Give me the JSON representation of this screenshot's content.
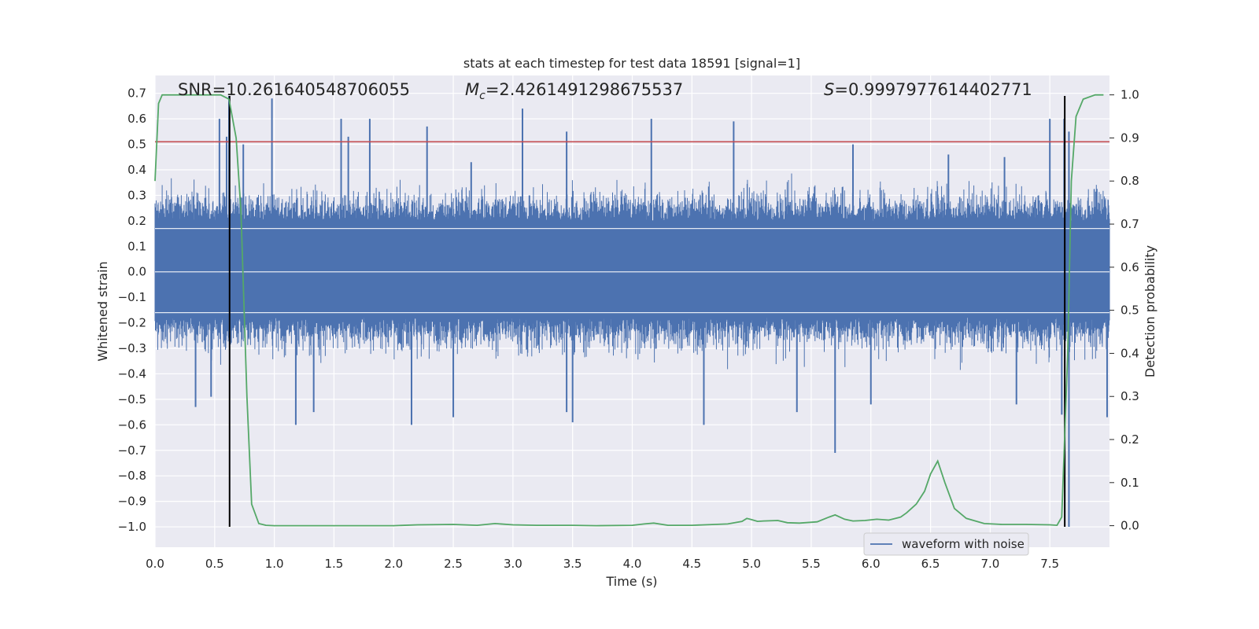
{
  "chart_data": {
    "type": "line",
    "title": "stats at each timestep for test data 18591 [signal=1]",
    "xlabel": "Time (s)",
    "ylabel_left": "Whitened strain",
    "ylabel_right": "Detection probability",
    "xlim": [
      0.0,
      8.0
    ],
    "ylim_left": [
      -1.08,
      0.77
    ],
    "ylim_right": [
      -0.05,
      1.045
    ],
    "x_ticks": [
      "0.0",
      "0.5",
      "1.0",
      "1.5",
      "2.0",
      "2.5",
      "3.0",
      "3.5",
      "4.0",
      "4.5",
      "5.0",
      "5.5",
      "6.0",
      "6.5",
      "7.0",
      "7.5"
    ],
    "y_ticks_left": [
      "0.7",
      "0.6",
      "0.5",
      "0.4",
      "0.3",
      "0.2",
      "0.1",
      "0.0",
      "−0.1",
      "−0.2",
      "−0.3",
      "−0.4",
      "−0.5",
      "−0.6",
      "−0.7",
      "−0.8",
      "−0.9",
      "−1.0"
    ],
    "y_ticks_right": [
      "1.0",
      "0.9",
      "0.8",
      "0.7",
      "0.6",
      "0.5",
      "0.4",
      "0.3",
      "0.2",
      "0.1",
      "0.0"
    ],
    "grid": true,
    "legend_position": "lower-right",
    "annotations": {
      "snr": "SNR=10.261640548706055",
      "mc": "=2.4261491298675537",
      "s": "=0.9997977614402771"
    },
    "threshold": {
      "y": 0.51,
      "color": "#c44e52"
    },
    "detection_lines_x": [
      0.625,
      7.625
    ],
    "series": [
      {
        "name": "waveform with noise",
        "axis": "left",
        "color": "#4c72b0",
        "noise_envelope": {
          "typical_max": [
            0.2,
            0.45
          ],
          "typical_min": [
            -0.18,
            -0.45
          ],
          "spikes_up": [
            {
              "x": 0.54,
              "y": 0.6
            },
            {
              "x": 0.6,
              "y": 0.53
            },
            {
              "x": 0.62,
              "y": 0.69
            },
            {
              "x": 0.74,
              "y": 0.5
            },
            {
              "x": 0.98,
              "y": 0.68
            },
            {
              "x": 1.56,
              "y": 0.6
            },
            {
              "x": 1.62,
              "y": 0.53
            },
            {
              "x": 1.8,
              "y": 0.6
            },
            {
              "x": 2.28,
              "y": 0.57
            },
            {
              "x": 2.65,
              "y": 0.43
            },
            {
              "x": 3.08,
              "y": 0.64
            },
            {
              "x": 3.45,
              "y": 0.55
            },
            {
              "x": 4.16,
              "y": 0.6
            },
            {
              "x": 4.85,
              "y": 0.59
            },
            {
              "x": 5.85,
              "y": 0.5
            },
            {
              "x": 6.65,
              "y": 0.46
            },
            {
              "x": 7.12,
              "y": 0.45
            },
            {
              "x": 7.5,
              "y": 0.6
            },
            {
              "x": 7.62,
              "y": 0.6
            },
            {
              "x": 7.66,
              "y": 0.55
            }
          ],
          "spikes_down": [
            {
              "x": 0.34,
              "y": -0.53
            },
            {
              "x": 0.47,
              "y": -0.49
            },
            {
              "x": 1.18,
              "y": -0.6
            },
            {
              "x": 1.33,
              "y": -0.55
            },
            {
              "x": 2.15,
              "y": -0.6
            },
            {
              "x": 2.5,
              "y": -0.57
            },
            {
              "x": 3.45,
              "y": -0.55
            },
            {
              "x": 3.5,
              "y": -0.59
            },
            {
              "x": 4.6,
              "y": -0.6
            },
            {
              "x": 5.38,
              "y": -0.55
            },
            {
              "x": 5.7,
              "y": -0.71
            },
            {
              "x": 6.0,
              "y": -0.52
            },
            {
              "x": 7.22,
              "y": -0.52
            },
            {
              "x": 7.6,
              "y": -0.56
            },
            {
              "x": 7.66,
              "y": -1.0
            },
            {
              "x": 7.98,
              "y": -0.57
            }
          ]
        }
      },
      {
        "name": "",
        "axis": "right",
        "color": "#55a868",
        "x": [
          0.0,
          0.03,
          0.06,
          0.11,
          0.2,
          0.3,
          0.4,
          0.5,
          0.55,
          0.62,
          0.68,
          0.72,
          0.77,
          0.81,
          0.87,
          0.93,
          1.0,
          1.2,
          1.5,
          1.8,
          2.0,
          2.2,
          2.5,
          2.7,
          2.85,
          3.0,
          3.2,
          3.5,
          3.7,
          4.0,
          4.1,
          4.18,
          4.3,
          4.5,
          4.8,
          4.92,
          4.96,
          5.0,
          5.05,
          5.1,
          5.22,
          5.3,
          5.4,
          5.55,
          5.65,
          5.7,
          5.78,
          5.85,
          5.95,
          6.05,
          6.15,
          6.25,
          6.3,
          6.38,
          6.45,
          6.5,
          6.56,
          6.62,
          6.7,
          6.8,
          6.95,
          7.1,
          7.3,
          7.5,
          7.56,
          7.6,
          7.65,
          7.68,
          7.72,
          7.78,
          7.88,
          7.95
        ],
        "values": [
          0.8,
          0.98,
          1.0,
          1.0,
          1.0,
          1.0,
          1.0,
          1.0,
          1.0,
          0.99,
          0.9,
          0.73,
          0.3,
          0.05,
          0.005,
          0.001,
          0.0,
          0.0,
          0.0,
          0.0,
          0.0,
          0.002,
          0.003,
          0.001,
          0.005,
          0.002,
          0.001,
          0.001,
          0.0,
          0.001,
          0.004,
          0.006,
          0.001,
          0.001,
          0.004,
          0.01,
          0.017,
          0.014,
          0.01,
          0.011,
          0.012,
          0.007,
          0.006,
          0.009,
          0.02,
          0.025,
          0.015,
          0.011,
          0.012,
          0.015,
          0.013,
          0.02,
          0.03,
          0.05,
          0.08,
          0.12,
          0.15,
          0.1,
          0.04,
          0.017,
          0.005,
          0.003,
          0.003,
          0.002,
          0.001,
          0.02,
          0.4,
          0.8,
          0.95,
          0.99,
          1.0,
          1.0
        ]
      }
    ]
  }
}
